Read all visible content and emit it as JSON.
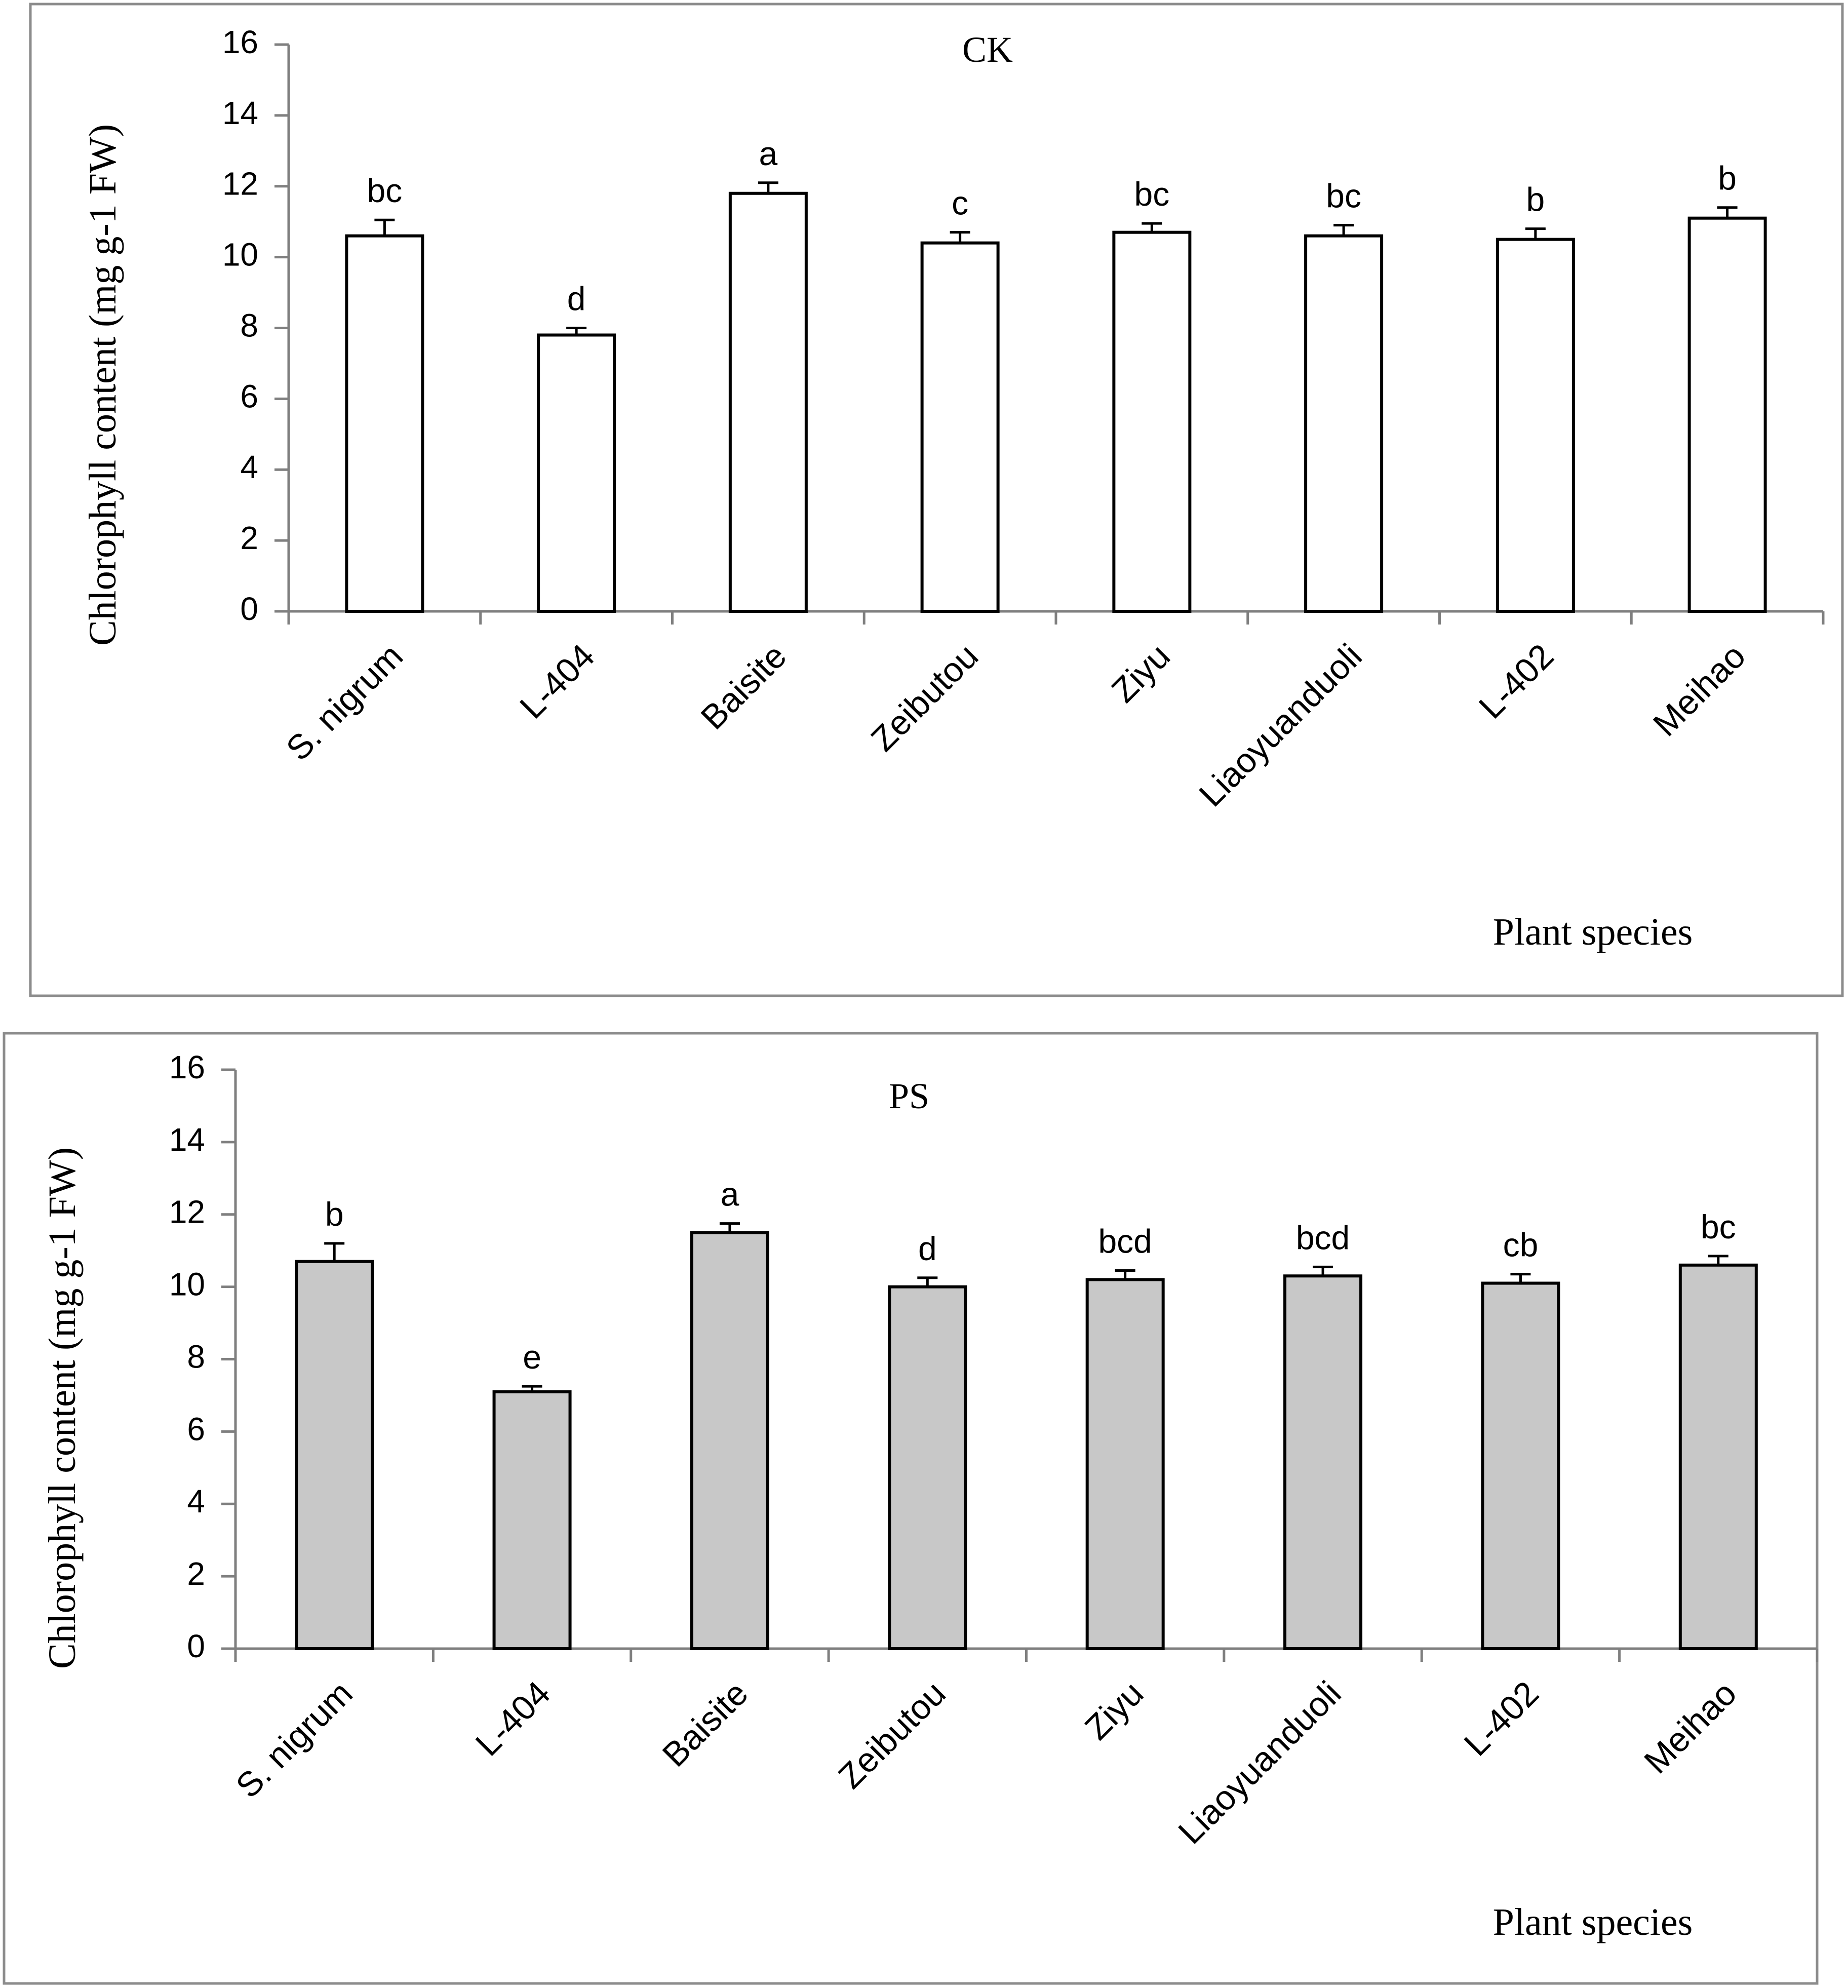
{
  "chart_data": [
    {
      "type": "bar",
      "title": "CK",
      "xlabel": "Plant species",
      "ylabel": "Chlorophyll content (mg g-1 FW)",
      "ylim": [
        0,
        16
      ],
      "yticks": [
        "0",
        "2",
        "4",
        "6",
        "8",
        "10",
        "12",
        "14",
        "16"
      ],
      "categories": [
        "S. nigrum",
        "L-404",
        "Baisite",
        "Zeibutou",
        "Ziyu",
        "Liaoyuanduoli",
        "L-402",
        "Meihao"
      ],
      "values": [
        10.6,
        7.8,
        11.8,
        10.4,
        10.7,
        10.6,
        10.5,
        11.1
      ],
      "errors": [
        0.45,
        0.2,
        0.3,
        0.3,
        0.25,
        0.3,
        0.3,
        0.3
      ],
      "significance": [
        "bc",
        "d",
        "a",
        "c",
        "bc",
        "bc",
        "b",
        "b"
      ],
      "bar_color": "#ffffff"
    },
    {
      "type": "bar",
      "title": "PS",
      "xlabel": "Plant species",
      "ylabel": "Chlorophyll content (mg g-1 FW)",
      "ylim": [
        0,
        16
      ],
      "yticks": [
        "0",
        "2",
        "4",
        "6",
        "8",
        "10",
        "12",
        "14",
        "16"
      ],
      "categories": [
        "S. nigrum",
        "L-404",
        "Baisite",
        "Zeibutou",
        "Ziyu",
        "Liaoyuanduoli",
        "L-402",
        "Meihao"
      ],
      "values": [
        10.7,
        7.1,
        11.5,
        10.0,
        10.2,
        10.3,
        10.1,
        10.6
      ],
      "errors": [
        0.5,
        0.15,
        0.25,
        0.25,
        0.25,
        0.25,
        0.25,
        0.25
      ],
      "significance": [
        "b",
        "e",
        "a",
        "d",
        "bcd",
        "bcd",
        "cb",
        "bc"
      ],
      "bar_color": "#c8c8c8"
    }
  ]
}
